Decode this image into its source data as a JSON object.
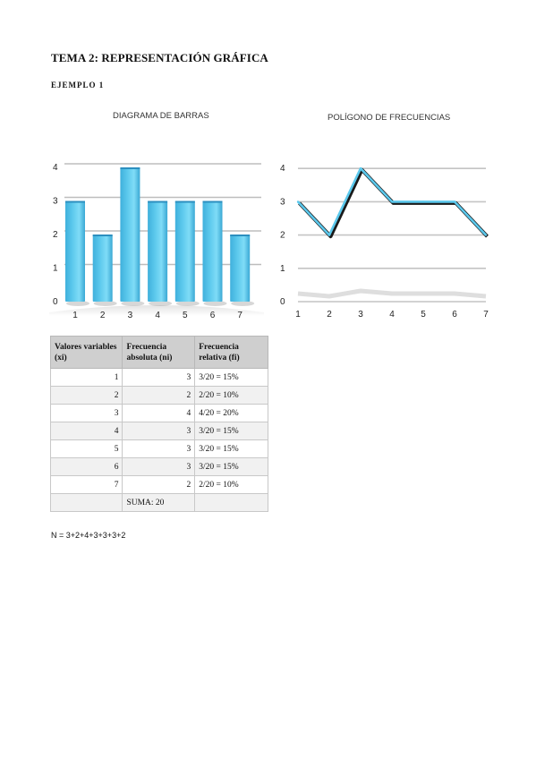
{
  "document": {
    "title": "TEMA 2: REPRESENTACIÓN GRÁFICA",
    "subtitle": "EJEMPLO 1",
    "note": "N = 3+2+4+3+3+3+2"
  },
  "chart_data": [
    {
      "type": "bar",
      "title": "DIAGRAMA DE BARRAS",
      "categories": [
        "1",
        "2",
        "3",
        "4",
        "5",
        "6",
        "7"
      ],
      "values": [
        3,
        2,
        4,
        3,
        3,
        3,
        2
      ],
      "ylim": [
        0,
        4
      ],
      "yticks": [
        "0",
        "1",
        "2",
        "3",
        "4"
      ],
      "grid": true,
      "bar_color": "#5bc8ec"
    },
    {
      "type": "line",
      "title": "POLÍGONO DE FRECUENCIAS",
      "categories": [
        "1",
        "2",
        "3",
        "4",
        "5",
        "6",
        "7"
      ],
      "values": [
        3,
        2,
        4,
        3,
        3,
        3,
        2
      ],
      "ylim": [
        0,
        4
      ],
      "yticks": [
        "0",
        "1",
        "2",
        "3",
        "4"
      ],
      "grid": true,
      "line_color": "#5bc8ec"
    }
  ],
  "table": {
    "headers": [
      "Valores variables (xi)",
      "Frecuencia absoluta (ni)",
      "Frecuencia relativa (fi)"
    ],
    "rows": [
      [
        "1",
        "3",
        "3/20 = 15%"
      ],
      [
        "2",
        "2",
        "2/20 = 10%"
      ],
      [
        "3",
        "4",
        "4/20 = 20%"
      ],
      [
        "4",
        "3",
        "3/20 = 15%"
      ],
      [
        "5",
        "3",
        "3/20 = 15%"
      ],
      [
        "6",
        "3",
        "3/20 = 15%"
      ],
      [
        "7",
        "2",
        "2/20 = 10%"
      ]
    ],
    "total": "SUMA: 20"
  }
}
